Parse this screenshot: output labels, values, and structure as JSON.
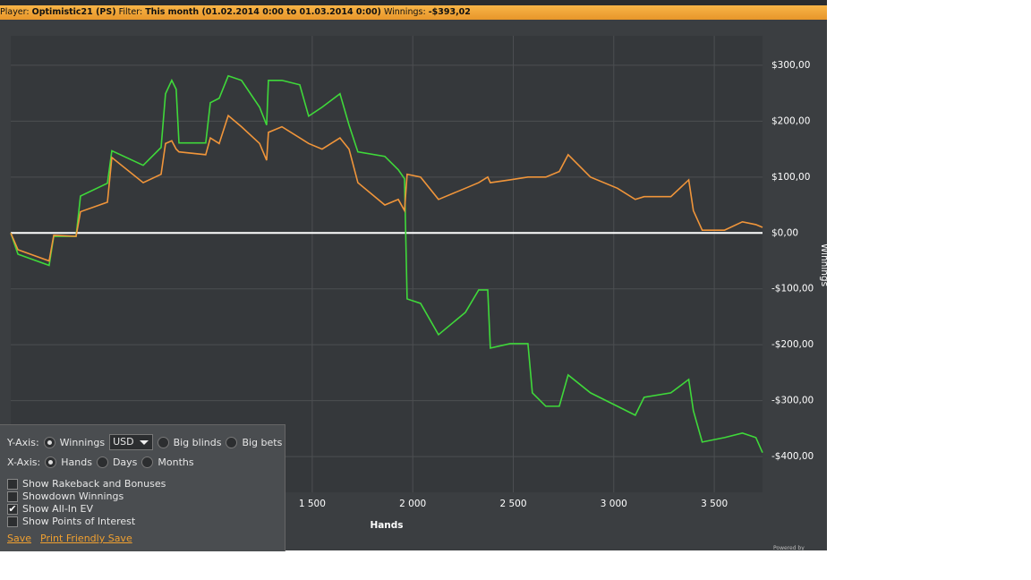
{
  "header": {
    "player_label": "Player:",
    "player": "Optimistic21 (PS)",
    "filter_label": "Filter:",
    "filter": "This month (01.02.2014 0:00 to 01.03.2014 0:00)",
    "winnings_label": "Winnings:",
    "winnings": "-$393,02"
  },
  "chart_data": {
    "type": "line",
    "x_label": "Hands",
    "y_label": "Winnings",
    "x": [
      0,
      36,
      191,
      214,
      325,
      347,
      481,
      503,
      659,
      748,
      770,
      801,
      823,
      837,
      970,
      993,
      1037,
      1082,
      1148,
      1238,
      1273,
      1282,
      1349,
      1438,
      1482,
      1549,
      1638,
      1683,
      1727,
      1861,
      1928,
      1959,
      1972,
      2039,
      2128,
      2262,
      2328,
      2373,
      2386,
      2484,
      2573,
      2595,
      2662,
      2729,
      2773,
      2884,
      3018,
      3107,
      3151,
      3284,
      3373,
      3396,
      3440,
      3551,
      3640,
      3707,
      3740
    ],
    "series": [
      {
        "color": "#3fd83a",
        "values": [
          0,
          -38,
          -58,
          -6,
          -6,
          66,
          89,
          147,
          121,
          153,
          249,
          273,
          257,
          161,
          161,
          233,
          241,
          281,
          273,
          225,
          193,
          273,
          273,
          265,
          209,
          225,
          249,
          193,
          145,
          137,
          113,
          97,
          -118,
          -126,
          -182,
          -142,
          -102,
          -102,
          -206,
          -198,
          -198,
          -286,
          -310,
          -310,
          -254,
          -286,
          -310,
          -326,
          -294,
          -286,
          -262,
          -318,
          -374,
          -366,
          -358,
          -366,
          -393
        ]
      },
      {
        "color": "#f0953a",
        "values": [
          0,
          -30,
          -50,
          -4,
          -6,
          38,
          55,
          135,
          90,
          105,
          160,
          165,
          150,
          145,
          140,
          170,
          160,
          210,
          190,
          160,
          130,
          180,
          190,
          170,
          160,
          150,
          170,
          150,
          90,
          50,
          60,
          40,
          105,
          100,
          60,
          80,
          90,
          100,
          90,
          95,
          100,
          100,
          100,
          110,
          140,
          100,
          80,
          60,
          65,
          65,
          95,
          40,
          5,
          5,
          20,
          15,
          10
        ]
      }
    ],
    "xlim": [
      0,
      3740
    ],
    "ylim": [
      352.7,
      -463.9
    ],
    "xticks": [
      {
        "value": 1500,
        "label": "1 500"
      },
      {
        "value": 2000,
        "label": "2 000"
      },
      {
        "value": 2500,
        "label": "2 500"
      },
      {
        "value": 3000,
        "label": "3 000"
      },
      {
        "value": 3500,
        "label": "3 500"
      }
    ],
    "yticks": [
      {
        "value": 300,
        "label": "$300,00"
      },
      {
        "value": 200,
        "label": "$200,00"
      },
      {
        "value": 100,
        "label": "$100,00"
      },
      {
        "value": 0,
        "label": "$0,00"
      },
      {
        "value": -100,
        "label": "-$100,00"
      },
      {
        "value": -200,
        "label": "-$200,00"
      },
      {
        "value": -300,
        "label": "-$300,00"
      },
      {
        "value": -400,
        "label": "-$400,00"
      }
    ],
    "grid": true,
    "zero_line_color": "#ffffff"
  },
  "panel": {
    "y_axis_label": "Y-Axis:",
    "currency": "USD",
    "y_options": [
      {
        "label": "Winnings",
        "selected": true
      },
      {
        "label": "Big blinds",
        "selected": false
      },
      {
        "label": "Big bets",
        "selected": false
      }
    ],
    "x_axis_label": "X-Axis:",
    "x_options": [
      {
        "label": "Hands",
        "selected": true
      },
      {
        "label": "Days",
        "selected": false
      },
      {
        "label": "Months",
        "selected": false
      }
    ],
    "checks": [
      {
        "label": "Show Rakeback and Bonuses",
        "checked": false
      },
      {
        "label": "Showdown Winnings",
        "checked": false
      },
      {
        "label": "Show All-In EV",
        "checked": true
      },
      {
        "label": "Show Points of Interest",
        "checked": false
      }
    ],
    "links": [
      "Save",
      "Print Friendly Save"
    ]
  },
  "footer": "Powered by"
}
